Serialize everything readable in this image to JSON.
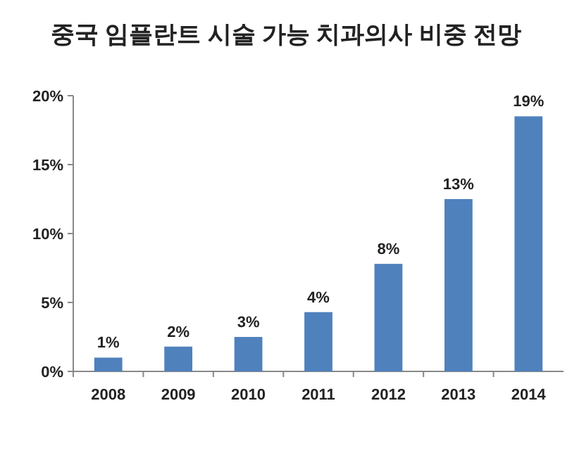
{
  "chart_data": {
    "type": "bar",
    "title": "중국 임플란트 시술 가능 치과의사 비중 전망",
    "categories": [
      "2008",
      "2009",
      "2010",
      "2011",
      "2012",
      "2013",
      "2014"
    ],
    "values": [
      1.0,
      1.8,
      2.5,
      4.3,
      7.8,
      12.5,
      18.5
    ],
    "value_labels": [
      "1%",
      "2%",
      "3%",
      "4%",
      "8%",
      "13%",
      "19%"
    ],
    "color": "#4f81bd",
    "ylim": [
      0,
      20
    ],
    "yticks": [
      {
        "value": 0,
        "label": "0%"
      },
      {
        "value": 5,
        "label": "5%"
      },
      {
        "value": 10,
        "label": "10%"
      },
      {
        "value": 15,
        "label": "15%"
      },
      {
        "value": 20,
        "label": "20%"
      }
    ],
    "grid": false
  }
}
